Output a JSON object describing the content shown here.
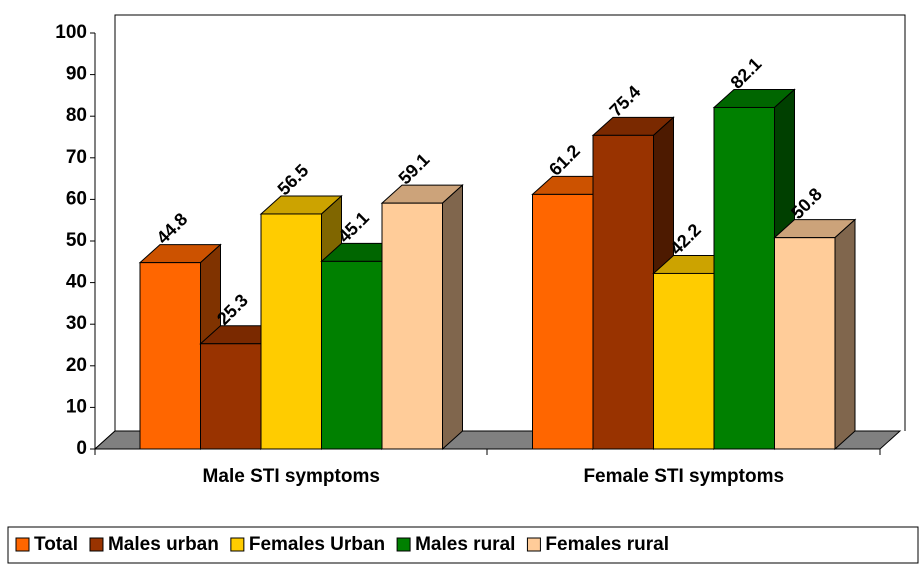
{
  "chart_data": {
    "type": "bar3d",
    "categories": [
      "Male STI symptoms",
      "Female STI symptoms"
    ],
    "series": [
      {
        "name": "Total",
        "color": "#ff6600",
        "values": [
          44.8,
          61.2
        ]
      },
      {
        "name": "Males urban",
        "color": "#993300",
        "values": [
          25.3,
          75.4
        ]
      },
      {
        "name": "Females Urban",
        "color": "#ffcc00",
        "values": [
          56.5,
          42.2
        ]
      },
      {
        "name": "Males rural",
        "color": "#008000",
        "values": [
          45.1,
          82.1
        ]
      },
      {
        "name": "Females rural",
        "color": "#ffcc99",
        "values": [
          59.1,
          50.8
        ]
      }
    ],
    "ylim": [
      0,
      100
    ],
    "yticks": [
      0,
      10,
      20,
      30,
      40,
      50,
      60,
      70,
      80,
      90,
      100
    ],
    "legend": "bottom"
  }
}
